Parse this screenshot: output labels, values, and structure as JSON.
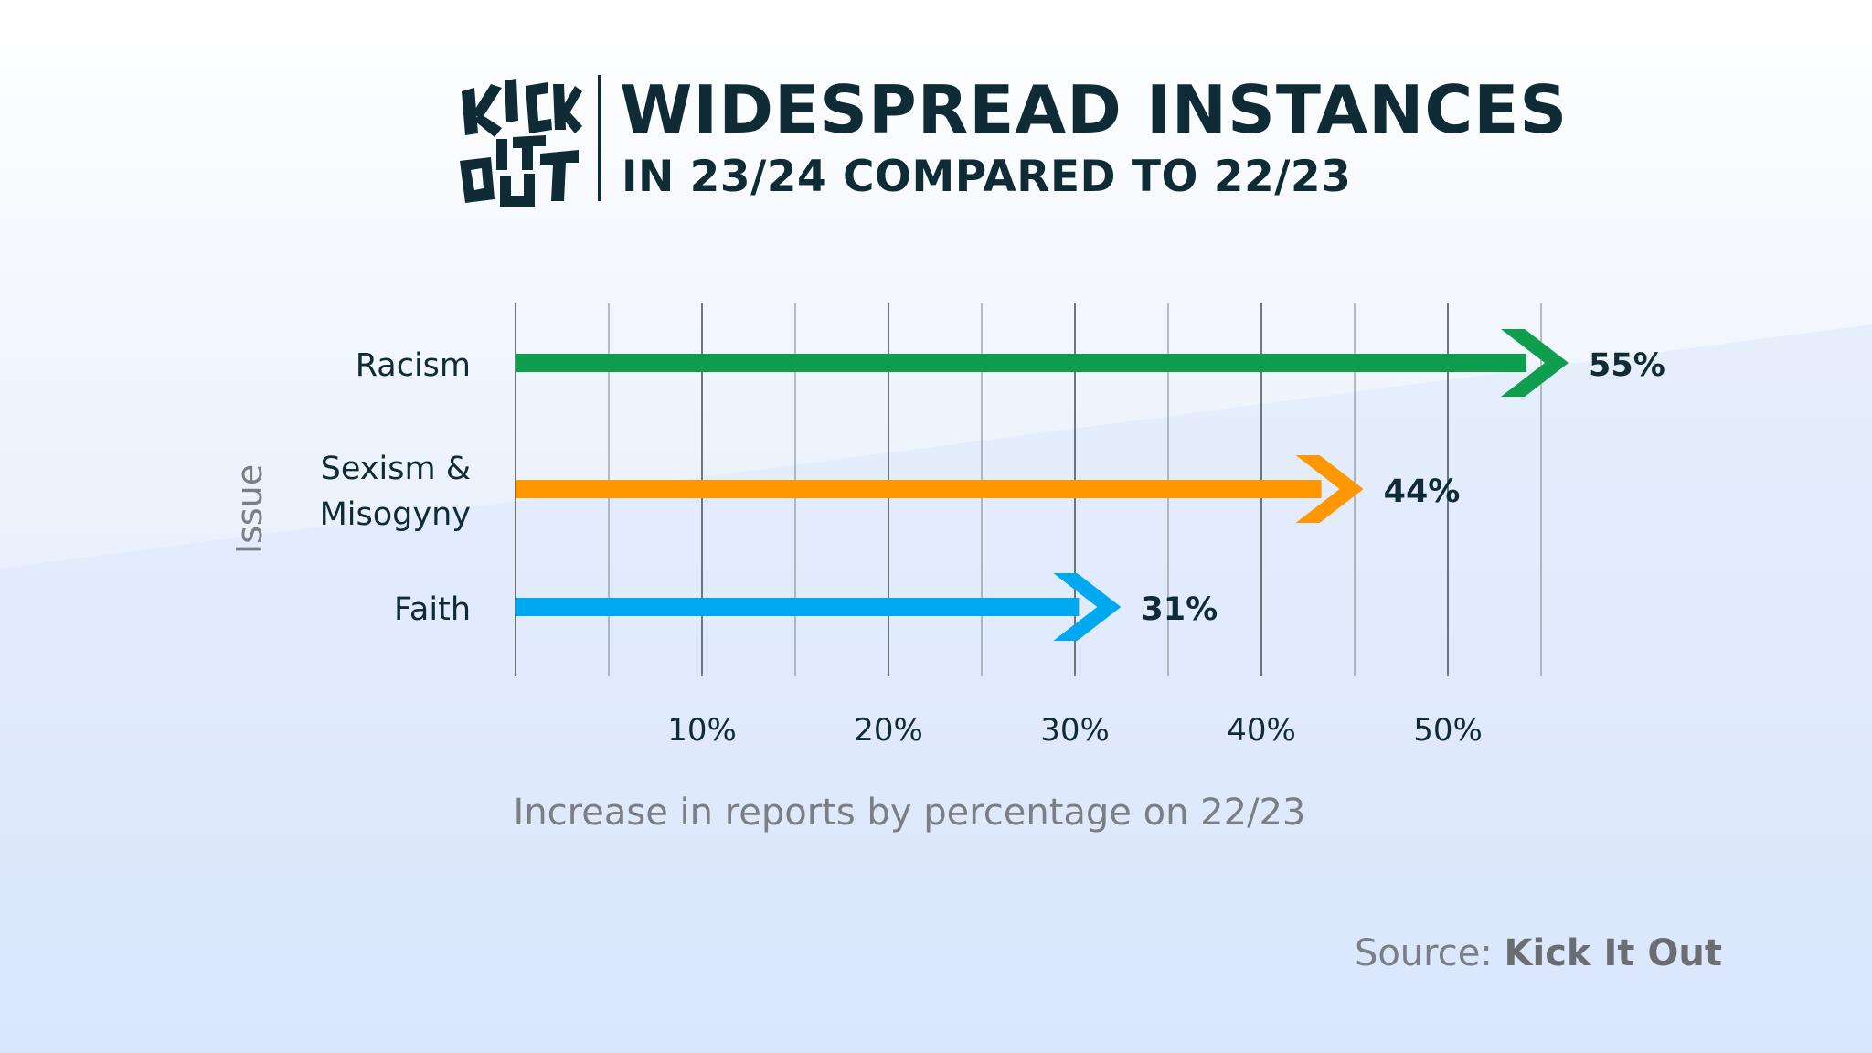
{
  "header": {
    "logo_text": [
      "KICK",
      "IT",
      "OUT"
    ],
    "title": "WIDESPREAD INSTANCES",
    "subtitle": "IN 23/24 COMPARED TO 22/23"
  },
  "source": {
    "label": "Source:",
    "name": "Kick It Out"
  },
  "colors": {
    "text_dark": "#0f2b35",
    "axis_grey": "#7b7f84",
    "gridline": "#5d6468"
  },
  "chart_data": {
    "type": "bar",
    "orientation": "horizontal",
    "title": "WIDESPREAD INSTANCES",
    "subtitle": "IN 23/24 COMPARED TO 22/23",
    "categories": [
      "Racism",
      "Sexism & Misogyny",
      "Faith"
    ],
    "category_lines": [
      [
        "Racism"
      ],
      [
        "Sexism &",
        "Misogyny"
      ],
      [
        "Faith"
      ]
    ],
    "values": [
      55,
      44,
      31
    ],
    "value_labels": [
      "55%",
      "44%",
      "31%"
    ],
    "bar_colors": [
      "#0f9d4e",
      "#ff9703",
      "#00a8ef"
    ],
    "xlabel": "Increase in reports by percentage on 22/23",
    "ylabel": "Issue",
    "xlim": [
      0,
      55
    ],
    "xticks": [
      10,
      20,
      30,
      40,
      50
    ],
    "xtick_labels": [
      "10%",
      "20%",
      "30%",
      "40%",
      "50%"
    ],
    "gridlines": [
      0,
      5,
      10,
      15,
      20,
      25,
      30,
      35,
      40,
      45,
      50,
      55
    ],
    "grid": true
  }
}
